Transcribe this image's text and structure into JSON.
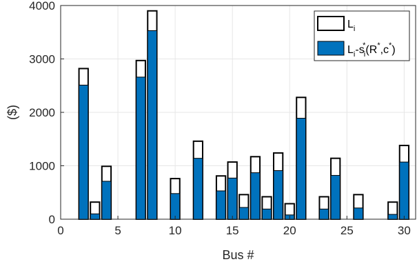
{
  "chart_data": {
    "type": "bar",
    "xlabel": "Bus #",
    "ylabel": "($)",
    "xlim": [
      0,
      31
    ],
    "ylim": [
      0,
      4000
    ],
    "xticks": [
      0,
      5,
      10,
      15,
      20,
      25,
      30
    ],
    "yticks": [
      0,
      1000,
      2000,
      3000,
      4000
    ],
    "grid": true,
    "legend_position": "top-right",
    "legend": {
      "entry1": {
        "main": "L",
        "sub": "i"
      },
      "entry2": {
        "main1": "L",
        "sub1": "i",
        "main2": "-s",
        "sub2": "i",
        "sup2": "*",
        "main3": "(R",
        "sup3": "*",
        "main4": ",c",
        "sup4": "*",
        "main5": ")"
      }
    },
    "colors": {
      "outline": "#000000",
      "fill": "#0072BD",
      "grid": "#e6e6e6",
      "axis": "#262626"
    },
    "x": [
      2,
      3,
      4,
      7,
      8,
      10,
      12,
      14,
      15,
      16,
      17,
      18,
      19,
      20,
      21,
      23,
      24,
      26,
      29,
      30
    ],
    "series": [
      {
        "name": "L_i",
        "values": [
          2820,
          320,
          990,
          2970,
          3900,
          760,
          1460,
          810,
          1070,
          460,
          1170,
          420,
          1240,
          290,
          2280,
          420,
          1140,
          460,
          320,
          1380
        ]
      },
      {
        "name": "L_i-s_i*(R*,c*)",
        "values": [
          2510,
          100,
          710,
          2660,
          3530,
          480,
          1140,
          530,
          770,
          220,
          870,
          190,
          910,
          80,
          1890,
          190,
          820,
          210,
          90,
          1070
        ]
      }
    ]
  }
}
